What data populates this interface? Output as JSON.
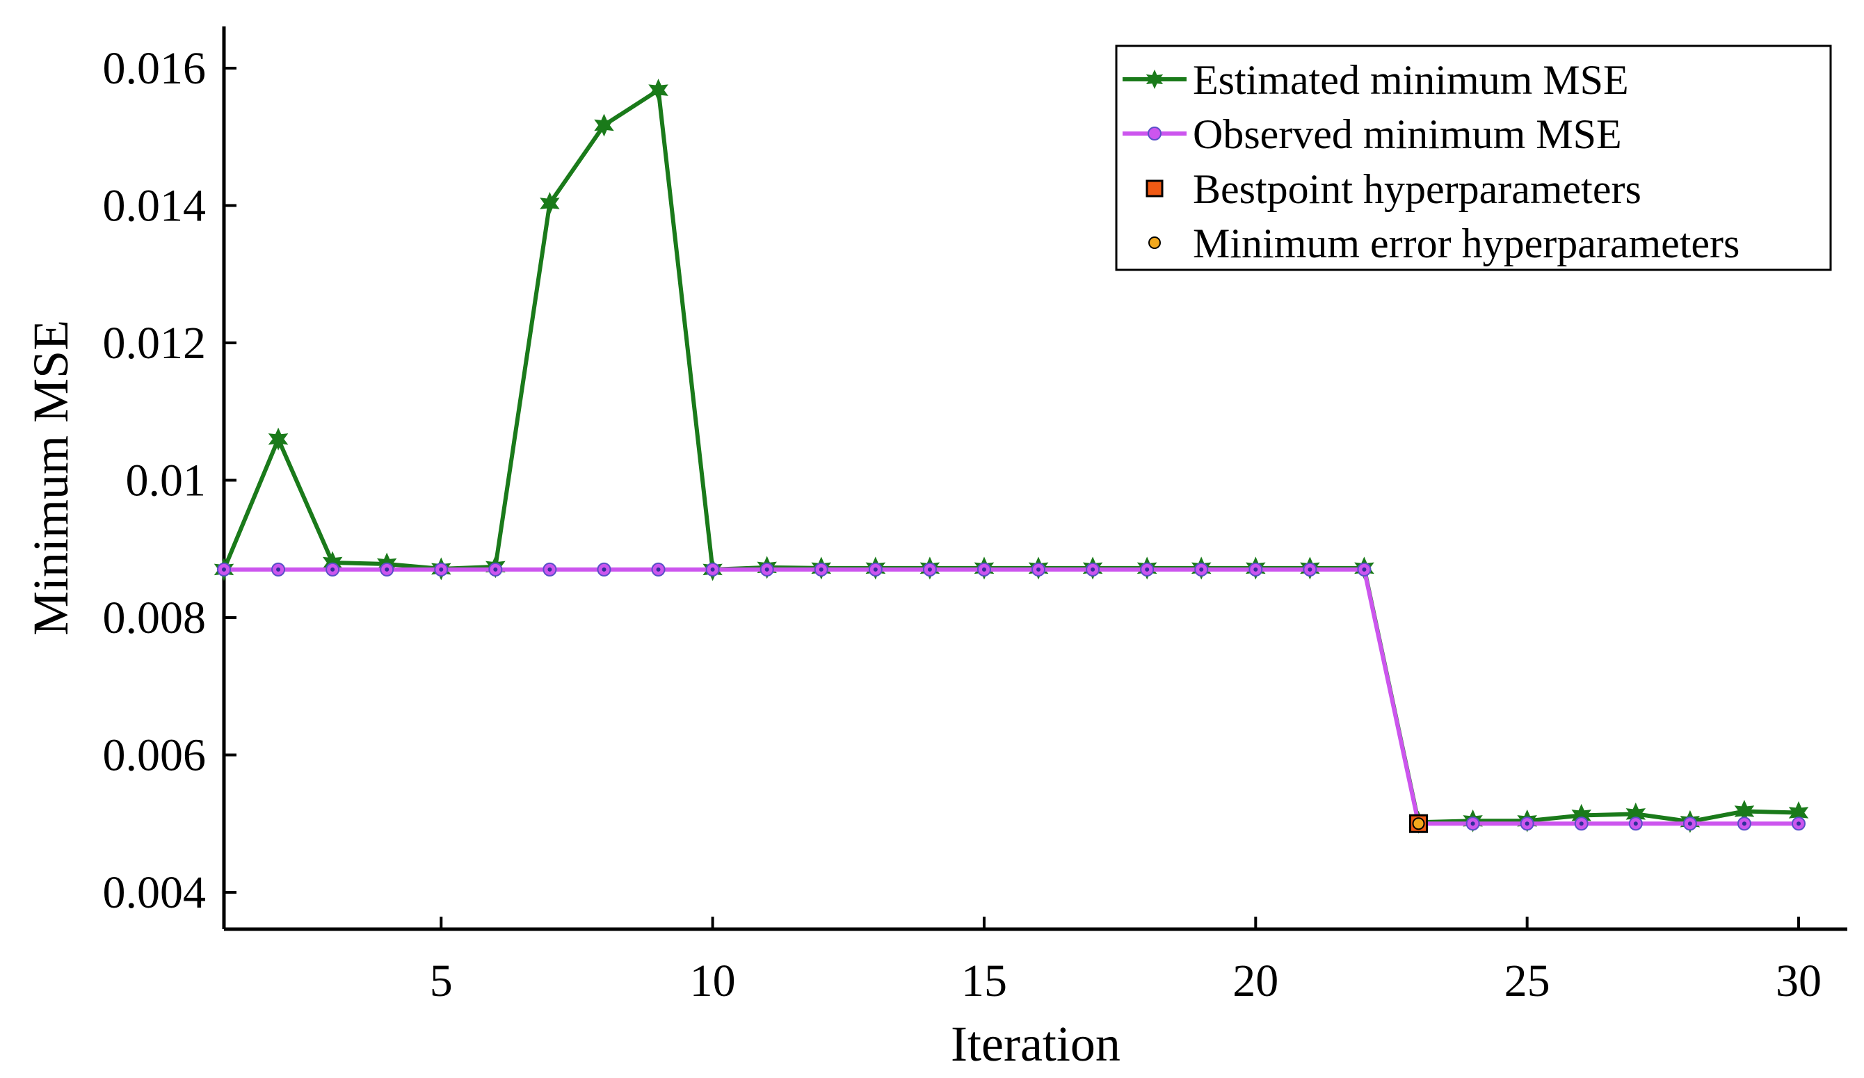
{
  "chart_data": {
    "type": "line",
    "title": "",
    "xlabel": "Iteration",
    "ylabel": "Minimum MSE",
    "xlim": [
      1,
      31
    ],
    "ylim": [
      0.0035,
      0.0166
    ],
    "x_ticks": [
      5,
      10,
      15,
      20,
      25,
      30
    ],
    "x_tick_labels": [
      "5",
      "10",
      "15",
      "20",
      "25",
      "30"
    ],
    "y_ticks": [
      0.004,
      0.006,
      0.008,
      0.01,
      0.012,
      0.014,
      0.016
    ],
    "y_tick_labels": [
      "0.004",
      "0.006",
      "0.008",
      "0.01",
      "0.012",
      "0.014",
      "0.016"
    ],
    "grid": false,
    "legend_position": "top-right",
    "x": [
      1,
      2,
      3,
      4,
      5,
      6,
      7,
      8,
      9,
      10,
      11,
      12,
      13,
      14,
      15,
      16,
      17,
      18,
      19,
      20,
      21,
      22,
      23,
      24,
      25,
      26,
      27,
      28,
      29,
      30
    ],
    "series": [
      {
        "name": "Estimated minimum MSE",
        "color": "#1a7a1a",
        "marker": "hexagram",
        "values": [
          0.0087,
          0.0106,
          0.0088,
          0.00878,
          0.00871,
          0.00874,
          0.01403,
          0.01517,
          0.01568,
          0.0087,
          0.00873,
          0.00872,
          0.00872,
          0.00872,
          0.00872,
          0.00872,
          0.00872,
          0.00872,
          0.00872,
          0.00872,
          0.00872,
          0.00872,
          0.00502,
          0.00504,
          0.00504,
          0.00512,
          0.00514,
          0.00503,
          0.00518,
          0.00516
        ]
      },
      {
        "name": "Observed minimum MSE",
        "color": "#cc55ee",
        "marker": "circle",
        "values": [
          0.0087,
          0.0087,
          0.0087,
          0.0087,
          0.0087,
          0.0087,
          0.0087,
          0.0087,
          0.0087,
          0.0087,
          0.0087,
          0.0087,
          0.0087,
          0.0087,
          0.0087,
          0.0087,
          0.0087,
          0.0087,
          0.0087,
          0.0087,
          0.0087,
          0.0087,
          0.005,
          0.005,
          0.005,
          0.005,
          0.005,
          0.005,
          0.005,
          0.005
        ]
      }
    ],
    "points": [
      {
        "name": "Bestpoint hyperparameters",
        "marker": "square",
        "color": "#f05a14",
        "x": 23,
        "y": 0.005
      },
      {
        "name": "Minimum error hyperparameters",
        "marker": "circle",
        "color": "#f2a81d",
        "x": 23,
        "y": 0.005
      }
    ],
    "legend": [
      {
        "label": "Estimated minimum MSE",
        "kind": "line-hexagram",
        "color": "#1a7a1a"
      },
      {
        "label": "Observed minimum MSE",
        "kind": "line-circle",
        "color": "#cc55ee"
      },
      {
        "label": "Bestpoint hyperparameters",
        "kind": "square",
        "color": "#f05a14"
      },
      {
        "label": "Minimum error hyperparameters",
        "kind": "circle",
        "color": "#f2a81d"
      }
    ]
  }
}
